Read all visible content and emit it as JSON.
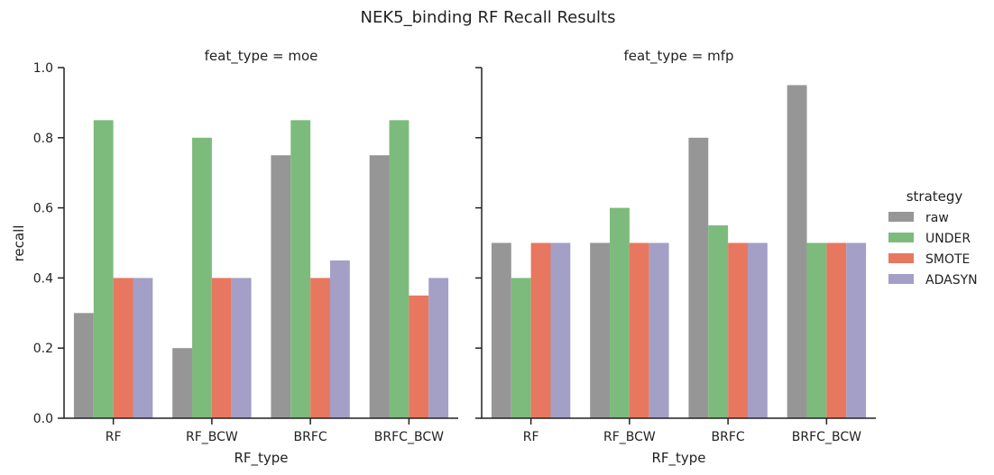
{
  "chart_data": {
    "type": "bar",
    "title": "NEK5_binding RF Recall Results",
    "ylabel": "recall",
    "xlabel": "RF_type",
    "ylim": [
      0,
      1.0
    ],
    "yticks": [
      "0.0",
      "0.2",
      "0.4",
      "0.6",
      "0.8",
      "1.0"
    ],
    "grid": false,
    "categories": [
      "RF",
      "RF_BCW",
      "BRFC",
      "BRFC_BCW"
    ],
    "legend": {
      "title": "strategy",
      "placement": "right",
      "entries": [
        "raw",
        "UNDER",
        "SMOTE",
        "ADASYN"
      ]
    },
    "colors": {
      "raw": "#969696",
      "UNDER": "#7dbb7d",
      "SMOTE": "#e8775f",
      "ADASYN": "#a39fc6"
    },
    "facets": [
      {
        "title": "feat_type = moe",
        "series": [
          {
            "name": "raw",
            "values": [
              0.3,
              0.2,
              0.75,
              0.75
            ]
          },
          {
            "name": "UNDER",
            "values": [
              0.85,
              0.8,
              0.85,
              0.85
            ]
          },
          {
            "name": "SMOTE",
            "values": [
              0.4,
              0.4,
              0.4,
              0.35
            ]
          },
          {
            "name": "ADASYN",
            "values": [
              0.4,
              0.4,
              0.45,
              0.4
            ]
          }
        ]
      },
      {
        "title": "feat_type = mfp",
        "series": [
          {
            "name": "raw",
            "values": [
              0.5,
              0.5,
              0.8,
              0.95
            ]
          },
          {
            "name": "UNDER",
            "values": [
              0.4,
              0.6,
              0.55,
              0.5
            ]
          },
          {
            "name": "SMOTE",
            "values": [
              0.5,
              0.5,
              0.5,
              0.5
            ]
          },
          {
            "name": "ADASYN",
            "values": [
              0.5,
              0.5,
              0.5,
              0.5
            ]
          }
        ]
      }
    ]
  }
}
